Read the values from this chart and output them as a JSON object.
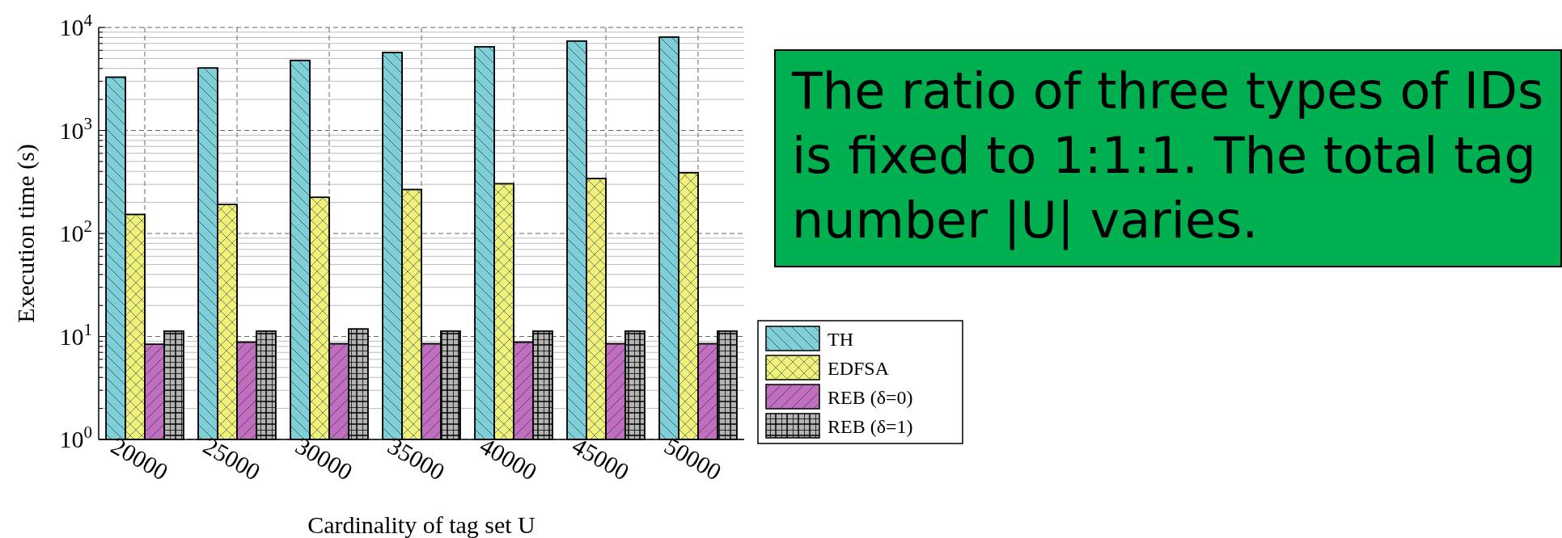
{
  "chart_data": {
    "type": "bar",
    "xlabel": "Cardinality of tag set U",
    "ylabel": "Execution time (s)",
    "categories": [
      "20000",
      "25000",
      "30000",
      "35000",
      "40000",
      "45000",
      "50000"
    ],
    "series": [
      {
        "name": "TH",
        "color": "#7ecfd8",
        "values": [
          3290,
          4040,
          4800,
          5710,
          6500,
          7400,
          8070
        ]
      },
      {
        "name": "EDFSA",
        "color": "#eef27a",
        "values": [
          153,
          191,
          224,
          267,
          304,
          342,
          389
        ]
      },
      {
        "name": "REB (δ=0)",
        "color": "#c06ec0",
        "values": [
          8.4,
          8.8,
          8.5,
          8.5,
          8.8,
          8.5,
          8.5
        ]
      },
      {
        "name": "REB (δ=1)",
        "color": "#b4b4b4",
        "values": [
          11.3,
          11.3,
          11.8,
          11.3,
          11.3,
          11.3,
          11.3
        ]
      }
    ],
    "log": true,
    "ylim": [
      1,
      10000
    ],
    "yticks": [
      {
        "value": 1,
        "label": "10$^{0}$"
      },
      {
        "value": 10,
        "label": "10$^{1}$"
      },
      {
        "value": 100,
        "label": "10$^{2}$"
      },
      {
        "value": 1000,
        "label": "10$^{3}$"
      },
      {
        "value": 10000,
        "label": "10$^{4}$"
      }
    ],
    "grid": true,
    "legend": "right",
    "annotations": [
      "The ratio of three types of IDs is fixed to 1:1:1. The total tag number |U| varies."
    ]
  }
}
